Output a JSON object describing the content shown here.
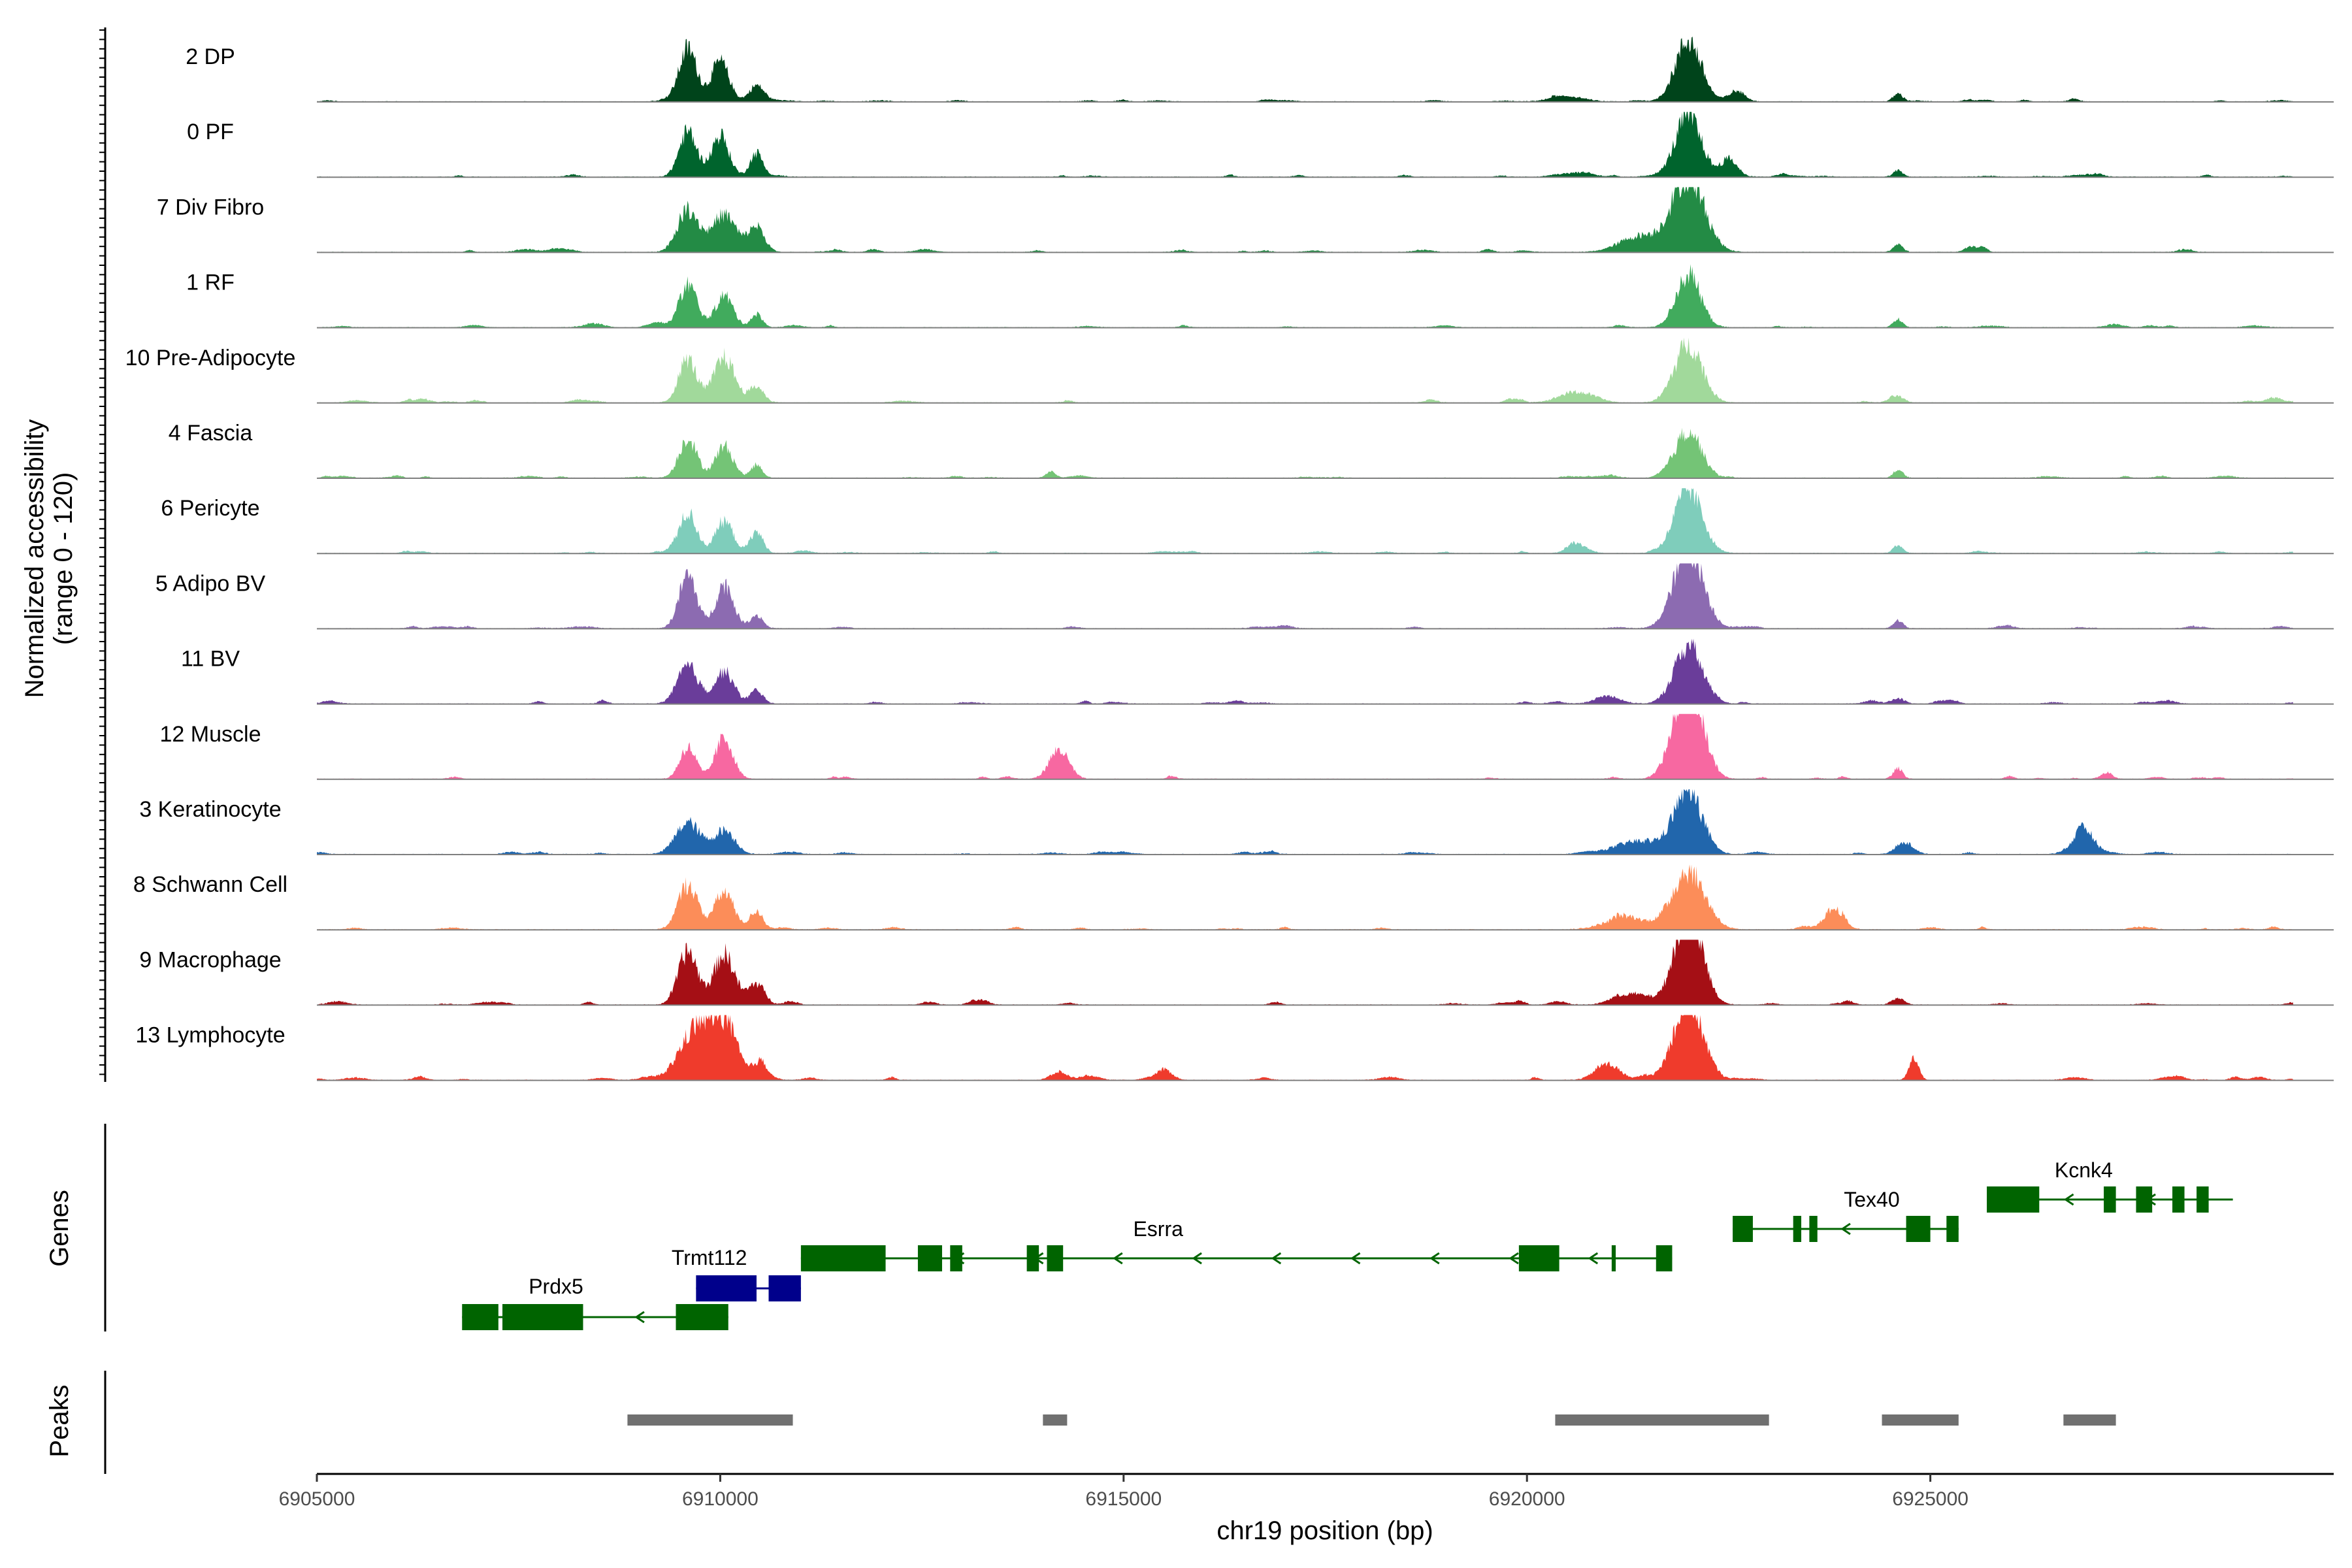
{
  "chart_data": {
    "type": "area",
    "title": "",
    "ylabel": "Normalized accessibility",
    "ylabel_range": "(range 0 - 120)",
    "ylim": [
      0,
      120
    ],
    "xlabel": "chr19 position (bp)",
    "xlim": [
      6905000,
      6930000
    ],
    "xticks": [
      6905000,
      6910000,
      6915000,
      6920000,
      6925000
    ],
    "xtick_labels": [
      "6905000",
      "6910000",
      "6915000",
      "6920000",
      "6925000"
    ],
    "tracks": [
      {
        "name": "2 DP",
        "color": "#00441b",
        "peaks": [
          [
            6909600,
            100,
            110
          ],
          [
            6910000,
            75,
            110
          ],
          [
            6910450,
            30,
            90
          ],
          [
            6922000,
            115,
            160
          ],
          [
            6922600,
            20,
            100
          ],
          [
            6924600,
            15,
            60
          ],
          [
            6920500,
            10,
            200
          ]
        ],
        "noise": 5
      },
      {
        "name": "0 PF",
        "color": "#00642d",
        "peaks": [
          [
            6909600,
            85,
            110
          ],
          [
            6910000,
            75,
            110
          ],
          [
            6910450,
            45,
            80
          ],
          [
            6922000,
            115,
            160
          ],
          [
            6922500,
            30,
            100
          ],
          [
            6924600,
            12,
            60
          ],
          [
            6920600,
            8,
            200
          ]
        ],
        "noise": 5
      },
      {
        "name": "7 Div Fibro",
        "color": "#238b45",
        "peaks": [
          [
            6909600,
            80,
            130
          ],
          [
            6910050,
            70,
            150
          ],
          [
            6910450,
            45,
            100
          ],
          [
            6922000,
            140,
            200
          ],
          [
            6921400,
            30,
            250
          ],
          [
            6924600,
            15,
            60
          ],
          [
            6925500,
            8,
            80
          ]
        ],
        "noise": 8
      },
      {
        "name": "1 RF",
        "color": "#41ab5d",
        "peaks": [
          [
            6909600,
            80,
            110
          ],
          [
            6910050,
            60,
            110
          ],
          [
            6910450,
            25,
            70
          ],
          [
            6922000,
            100,
            150
          ],
          [
            6924600,
            15,
            60
          ],
          [
            6909200,
            10,
            100
          ]
        ],
        "noise": 5
      },
      {
        "name": "10 Pre-Adipocyte",
        "color": "#a1d99b",
        "peaks": [
          [
            6909600,
            80,
            110
          ],
          [
            6910050,
            85,
            130
          ],
          [
            6910450,
            30,
            90
          ],
          [
            6922000,
            110,
            170
          ],
          [
            6920600,
            20,
            200
          ],
          [
            6924600,
            10,
            80
          ]
        ],
        "noise": 8
      },
      {
        "name": "4 Fascia",
        "color": "#74c476",
        "peaks": [
          [
            6909600,
            75,
            110
          ],
          [
            6910050,
            60,
            110
          ],
          [
            6910450,
            25,
            70
          ],
          [
            6922000,
            90,
            160
          ],
          [
            6914100,
            12,
            60
          ],
          [
            6924600,
            15,
            60
          ]
        ],
        "noise": 5
      },
      {
        "name": "6 Pericyte",
        "color": "#7fcdbb",
        "peaks": [
          [
            6909600,
            75,
            110
          ],
          [
            6910050,
            60,
            110
          ],
          [
            6910450,
            40,
            80
          ],
          [
            6922000,
            120,
            170
          ],
          [
            6920600,
            20,
            100
          ],
          [
            6924600,
            15,
            60
          ]
        ],
        "noise": 5
      },
      {
        "name": "5 Adipo BV",
        "color": "#8c6bb1",
        "peaks": [
          [
            6909600,
            100,
            110
          ],
          [
            6910050,
            80,
            110
          ],
          [
            6910450,
            25,
            80
          ],
          [
            6922000,
            150,
            180
          ],
          [
            6924600,
            15,
            60
          ]
        ],
        "noise": 5
      },
      {
        "name": "11 BV",
        "color": "#6a3d9a",
        "peaks": [
          [
            6909600,
            70,
            130
          ],
          [
            6910050,
            60,
            120
          ],
          [
            6910450,
            25,
            80
          ],
          [
            6922000,
            110,
            170
          ],
          [
            6921000,
            15,
            150
          ],
          [
            6924600,
            10,
            80
          ]
        ],
        "noise": 10
      },
      {
        "name": "12 Muscle",
        "color": "#f768a1",
        "peaks": [
          [
            6909600,
            60,
            100
          ],
          [
            6910050,
            70,
            110
          ],
          [
            6914200,
            55,
            120
          ],
          [
            6922000,
            190,
            170
          ],
          [
            6924600,
            20,
            60
          ],
          [
            6927200,
            10,
            60
          ]
        ],
        "noise": 8
      },
      {
        "name": "3 Keratinocyte",
        "color": "#2166ac",
        "peaks": [
          [
            6909600,
            60,
            150
          ],
          [
            6910050,
            45,
            130
          ],
          [
            6922000,
            120,
            170
          ],
          [
            6921400,
            25,
            300
          ],
          [
            6926900,
            50,
            120
          ],
          [
            6924700,
            20,
            100
          ]
        ],
        "noise": 6
      },
      {
        "name": "8 Schwann Cell",
        "color": "#fc8d59",
        "peaks": [
          [
            6909600,
            85,
            120
          ],
          [
            6910050,
            70,
            120
          ],
          [
            6910450,
            35,
            80
          ],
          [
            6922000,
            110,
            200
          ],
          [
            6921200,
            20,
            250
          ],
          [
            6923800,
            35,
            120
          ]
        ],
        "noise": 8
      },
      {
        "name": "9 Macrophage",
        "color": "#a50f15",
        "peaks": [
          [
            6909600,
            100,
            120
          ],
          [
            6910050,
            95,
            130
          ],
          [
            6910450,
            40,
            100
          ],
          [
            6922000,
            175,
            170
          ],
          [
            6921300,
            20,
            200
          ],
          [
            6924600,
            12,
            80
          ]
        ],
        "noise": 10
      },
      {
        "name": "13 Lymphocyte",
        "color": "#ef3b2c",
        "peaks": [
          [
            6909700,
            95,
            200
          ],
          [
            6910050,
            100,
            160
          ],
          [
            6910500,
            35,
            90
          ],
          [
            6914200,
            15,
            100
          ],
          [
            6915500,
            20,
            100
          ],
          [
            6922000,
            150,
            180
          ],
          [
            6921000,
            30,
            150
          ],
          [
            6924800,
            40,
            60
          ]
        ],
        "noise": 12
      }
    ],
    "genes": [
      {
        "name": "Prdx5",
        "color": "#006400",
        "start": 6906800,
        "end": 6910100,
        "exons": [
          [
            6906800,
            6907250
          ],
          [
            6907300,
            6908300
          ],
          [
            6909450,
            6910100
          ]
        ],
        "strand": "-"
      },
      {
        "name": "Trmt112",
        "color": "#00008b",
        "start": 6909700,
        "end": 6911000,
        "exons": [
          [
            6909700,
            6910450
          ],
          [
            6910600,
            6911000
          ]
        ],
        "strand": "-"
      },
      {
        "name": "Esrra",
        "color": "#006400",
        "start": 6911000,
        "end": 6921800,
        "exons": [
          [
            6911000,
            6912050
          ],
          [
            6912450,
            6912750
          ],
          [
            6912850,
            6913000
          ],
          [
            6913800,
            6913950
          ],
          [
            6914050,
            6914250
          ],
          [
            6919900,
            6920400
          ],
          [
            6921050,
            6921100
          ],
          [
            6921600,
            6921800
          ]
        ],
        "strand": "-"
      },
      {
        "name": "Tex40",
        "color": "#006400",
        "start": 6922550,
        "end": 6925350,
        "exons": [
          [
            6922550,
            6922800
          ],
          [
            6923300,
            6923400
          ],
          [
            6923500,
            6923600
          ],
          [
            6924700,
            6925000
          ],
          [
            6925200,
            6925350
          ]
        ],
        "strand": "-"
      },
      {
        "name": "Kcnk4",
        "color": "#006400",
        "start": 6925700,
        "end": 6928750,
        "exons": [
          [
            6925700,
            6926350
          ],
          [
            6927150,
            6927300
          ],
          [
            6927550,
            6927750
          ],
          [
            6928000,
            6928150
          ],
          [
            6928300,
            6928450
          ]
        ],
        "strand": "-"
      }
    ],
    "peaks": [
      [
        6908850,
        6910900
      ],
      [
        6914000,
        6914300
      ],
      [
        6920350,
        6923000
      ],
      [
        6924400,
        6925350
      ],
      [
        6926650,
        6927300
      ]
    ],
    "peaks_color": "#707070",
    "genes_title": "Genes",
    "peaks_title": "Peaks"
  }
}
